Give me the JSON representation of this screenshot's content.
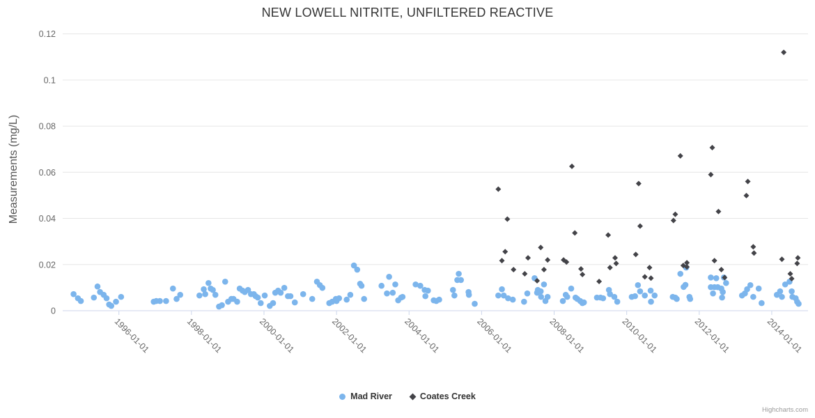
{
  "credits_label": "Highcharts.com",
  "colors": {
    "mad_river": "#7cb5ec",
    "coates_creek": "#434348",
    "grid_line": "#e6e6e6",
    "axis_line": "#ccd6eb",
    "title_text": "#333333",
    "tick_text": "#666666",
    "credits_text": "#999999"
  },
  "chart_data": {
    "type": "scatter",
    "title": "NEW LOWELL NITRITE, UNFILTERED REACTIVE",
    "xlabel": "",
    "ylabel": "Measurements (mg/L)",
    "ylim": [
      0,
      0.1226
    ],
    "yticks": [
      0,
      0.02,
      0.04,
      0.06,
      0.08,
      0.1,
      0.12
    ],
    "ytick_labels": [
      "0",
      "0.02",
      "0.04",
      "0.06",
      "0.08",
      "0.1",
      "0.12"
    ],
    "xlim": [
      1994.45,
      2015.0
    ],
    "xticks": [
      1996,
      1998,
      2000,
      2002,
      2004,
      2006,
      2008,
      2010,
      2012,
      2014
    ],
    "xtick_labels": [
      "1996-01-01",
      "1998-01-01",
      "2000-01-01",
      "2002-01-01",
      "2004-01-01",
      "2006-01-01",
      "2008-01-01",
      "2010-01-01",
      "2012-01-01",
      "2014-01-01"
    ],
    "grid": "horizontal-only",
    "legend_position": "bottom-center",
    "x_unit": "decimal-year",
    "series": [
      {
        "name": "Mad River",
        "marker": "circle",
        "color": "#7cb5ec",
        "points": [
          [
            1994.75,
            0.0072
          ],
          [
            1994.87,
            0.0054
          ],
          [
            1994.95,
            0.0042
          ],
          [
            1995.31,
            0.0057
          ],
          [
            1995.41,
            0.0105
          ],
          [
            1995.48,
            0.0081
          ],
          [
            1995.58,
            0.0069
          ],
          [
            1995.66,
            0.0054
          ],
          [
            1995.73,
            0.0027
          ],
          [
            1995.79,
            0.0021
          ],
          [
            1995.92,
            0.0039
          ],
          [
            1996.06,
            0.006
          ],
          [
            1996.96,
            0.0039
          ],
          [
            1997.03,
            0.0042
          ],
          [
            1997.13,
            0.0042
          ],
          [
            1997.3,
            0.0042
          ],
          [
            1997.49,
            0.0096
          ],
          [
            1997.59,
            0.0051
          ],
          [
            1997.69,
            0.0069
          ],
          [
            1998.22,
            0.0066
          ],
          [
            1998.34,
            0.0093
          ],
          [
            1998.38,
            0.0072
          ],
          [
            1998.47,
            0.012
          ],
          [
            1998.53,
            0.0096
          ],
          [
            1998.59,
            0.009
          ],
          [
            1998.66,
            0.0069
          ],
          [
            1998.76,
            0.0018
          ],
          [
            1998.84,
            0.0024
          ],
          [
            1998.93,
            0.0126
          ],
          [
            1999.01,
            0.0039
          ],
          [
            1999.1,
            0.0051
          ],
          [
            1999.16,
            0.0051
          ],
          [
            1999.26,
            0.0039
          ],
          [
            1999.33,
            0.0096
          ],
          [
            1999.41,
            0.0087
          ],
          [
            1999.47,
            0.0081
          ],
          [
            1999.56,
            0.009
          ],
          [
            1999.64,
            0.0072
          ],
          [
            1999.72,
            0.0072
          ],
          [
            1999.77,
            0.0063
          ],
          [
            1999.83,
            0.0057
          ],
          [
            1999.91,
            0.0033
          ],
          [
            2000.02,
            0.0066
          ],
          [
            2000.16,
            0.0021
          ],
          [
            2000.25,
            0.0033
          ],
          [
            2000.31,
            0.0078
          ],
          [
            2000.39,
            0.0087
          ],
          [
            2000.46,
            0.0078
          ],
          [
            2000.56,
            0.0099
          ],
          [
            2000.66,
            0.0063
          ],
          [
            2000.73,
            0.0063
          ],
          [
            2000.85,
            0.0036
          ],
          [
            2001.08,
            0.0072
          ],
          [
            2001.33,
            0.0051
          ],
          [
            2001.46,
            0.0126
          ],
          [
            2001.54,
            0.0111
          ],
          [
            2001.61,
            0.0099
          ],
          [
            2001.8,
            0.0033
          ],
          [
            2001.88,
            0.0039
          ],
          [
            2001.98,
            0.0051
          ],
          [
            2002.0,
            0.0042
          ],
          [
            2002.07,
            0.0054
          ],
          [
            2002.28,
            0.0048
          ],
          [
            2002.38,
            0.0069
          ],
          [
            2002.48,
            0.0196
          ],
          [
            2002.57,
            0.0178
          ],
          [
            2002.65,
            0.0117
          ],
          [
            2002.69,
            0.0108
          ],
          [
            2002.76,
            0.0051
          ],
          [
            2003.24,
            0.0108
          ],
          [
            2003.39,
            0.0075
          ],
          [
            2003.45,
            0.0147
          ],
          [
            2003.55,
            0.0078
          ],
          [
            2003.62,
            0.0114
          ],
          [
            2003.7,
            0.0045
          ],
          [
            2003.78,
            0.0057
          ],
          [
            2003.82,
            0.006
          ],
          [
            2004.18,
            0.0114
          ],
          [
            2004.31,
            0.0108
          ],
          [
            2004.43,
            0.009
          ],
          [
            2004.45,
            0.0063
          ],
          [
            2004.52,
            0.0087
          ],
          [
            2004.68,
            0.0045
          ],
          [
            2004.75,
            0.0042
          ],
          [
            2004.83,
            0.0048
          ],
          [
            2005.21,
            0.009
          ],
          [
            2005.25,
            0.0066
          ],
          [
            2005.33,
            0.0133
          ],
          [
            2005.37,
            0.016
          ],
          [
            2005.43,
            0.0133
          ],
          [
            2005.64,
            0.0081
          ],
          [
            2005.65,
            0.0069
          ],
          [
            2005.81,
            0.003
          ],
          [
            2006.46,
            0.0066
          ],
          [
            2006.56,
            0.0093
          ],
          [
            2006.61,
            0.0066
          ],
          [
            2006.73,
            0.0054
          ],
          [
            2006.86,
            0.0048
          ],
          [
            2007.17,
            0.0039
          ],
          [
            2007.26,
            0.0075
          ],
          [
            2007.46,
            0.0141
          ],
          [
            2007.53,
            0.0078
          ],
          [
            2007.55,
            0.009
          ],
          [
            2007.63,
            0.0084
          ],
          [
            2007.64,
            0.006
          ],
          [
            2007.72,
            0.0114
          ],
          [
            2007.76,
            0.0042
          ],
          [
            2007.82,
            0.006
          ],
          [
            2008.24,
            0.0042
          ],
          [
            2008.32,
            0.0069
          ],
          [
            2008.36,
            0.006
          ],
          [
            2008.47,
            0.0096
          ],
          [
            2008.59,
            0.0057
          ],
          [
            2008.64,
            0.0051
          ],
          [
            2008.72,
            0.0042
          ],
          [
            2008.78,
            0.0033
          ],
          [
            2008.82,
            0.0036
          ],
          [
            2009.18,
            0.0057
          ],
          [
            2009.28,
            0.0057
          ],
          [
            2009.35,
            0.0054
          ],
          [
            2009.51,
            0.009
          ],
          [
            2009.54,
            0.0072
          ],
          [
            2009.66,
            0.006
          ],
          [
            2009.74,
            0.0039
          ],
          [
            2010.14,
            0.006
          ],
          [
            2010.23,
            0.0063
          ],
          [
            2010.31,
            0.0111
          ],
          [
            2010.37,
            0.0084
          ],
          [
            2010.5,
            0.0066
          ],
          [
            2010.66,
            0.0087
          ],
          [
            2010.67,
            0.0039
          ],
          [
            2010.77,
            0.0066
          ],
          [
            2011.27,
            0.006
          ],
          [
            2011.34,
            0.0057
          ],
          [
            2011.38,
            0.0051
          ],
          [
            2011.48,
            0.016
          ],
          [
            2011.57,
            0.0103
          ],
          [
            2011.62,
            0.0112
          ],
          [
            2011.64,
            0.0187
          ],
          [
            2011.73,
            0.006
          ],
          [
            2011.75,
            0.0051
          ],
          [
            2012.32,
            0.0144
          ],
          [
            2012.32,
            0.0102
          ],
          [
            2012.38,
            0.0075
          ],
          [
            2012.42,
            0.0102
          ],
          [
            2012.47,
            0.0141
          ],
          [
            2012.51,
            0.0102
          ],
          [
            2012.61,
            0.0096
          ],
          [
            2012.63,
            0.0057
          ],
          [
            2012.65,
            0.0081
          ],
          [
            2012.68,
            0.0144
          ],
          [
            2012.74,
            0.012
          ],
          [
            2013.18,
            0.0066
          ],
          [
            2013.26,
            0.0075
          ],
          [
            2013.32,
            0.0093
          ],
          [
            2013.41,
            0.0111
          ],
          [
            2013.49,
            0.006
          ],
          [
            2013.64,
            0.0096
          ],
          [
            2013.72,
            0.0033
          ],
          [
            2014.14,
            0.0069
          ],
          [
            2014.23,
            0.0084
          ],
          [
            2014.28,
            0.006
          ],
          [
            2014.37,
            0.0114
          ],
          [
            2014.49,
            0.0126
          ],
          [
            2014.55,
            0.0084
          ],
          [
            2014.57,
            0.006
          ],
          [
            2014.66,
            0.0054
          ],
          [
            2014.7,
            0.0039
          ],
          [
            2014.74,
            0.003
          ]
        ]
      },
      {
        "name": "Coates Creek",
        "marker": "diamond",
        "color": "#434348",
        "points": [
          [
            2006.46,
            0.0527
          ],
          [
            2006.56,
            0.0217
          ],
          [
            2006.65,
            0.0256
          ],
          [
            2006.71,
            0.0397
          ],
          [
            2006.88,
            0.0178
          ],
          [
            2007.19,
            0.016
          ],
          [
            2007.28,
            0.0229
          ],
          [
            2007.53,
            0.013
          ],
          [
            2007.63,
            0.0274
          ],
          [
            2007.72,
            0.0178
          ],
          [
            2007.82,
            0.022
          ],
          [
            2008.26,
            0.022
          ],
          [
            2008.34,
            0.0211
          ],
          [
            2008.49,
            0.0626
          ],
          [
            2008.57,
            0.0337
          ],
          [
            2008.74,
            0.0181
          ],
          [
            2008.78,
            0.0157
          ],
          [
            2009.24,
            0.0127
          ],
          [
            2009.49,
            0.0328
          ],
          [
            2009.54,
            0.0187
          ],
          [
            2009.68,
            0.0229
          ],
          [
            2009.71,
            0.0205
          ],
          [
            2010.25,
            0.0244
          ],
          [
            2010.33,
            0.0551
          ],
          [
            2010.37,
            0.0367
          ],
          [
            2010.5,
            0.0147
          ],
          [
            2010.63,
            0.0187
          ],
          [
            2010.67,
            0.0141
          ],
          [
            2011.29,
            0.0391
          ],
          [
            2011.34,
            0.0418
          ],
          [
            2011.48,
            0.0671
          ],
          [
            2011.56,
            0.0196
          ],
          [
            2011.66,
            0.0208
          ],
          [
            2011.66,
            0.019
          ],
          [
            2012.32,
            0.059
          ],
          [
            2012.36,
            0.0707
          ],
          [
            2012.42,
            0.0217
          ],
          [
            2012.53,
            0.043
          ],
          [
            2012.61,
            0.0178
          ],
          [
            2012.7,
            0.0144
          ],
          [
            2013.3,
            0.0499
          ],
          [
            2013.34,
            0.056
          ],
          [
            2013.49,
            0.0277
          ],
          [
            2013.51,
            0.025
          ],
          [
            2014.28,
            0.0223
          ],
          [
            2014.33,
            0.112
          ],
          [
            2014.51,
            0.016
          ],
          [
            2014.55,
            0.0139
          ],
          [
            2014.7,
            0.0205
          ],
          [
            2014.72,
            0.0229
          ]
        ]
      }
    ]
  }
}
